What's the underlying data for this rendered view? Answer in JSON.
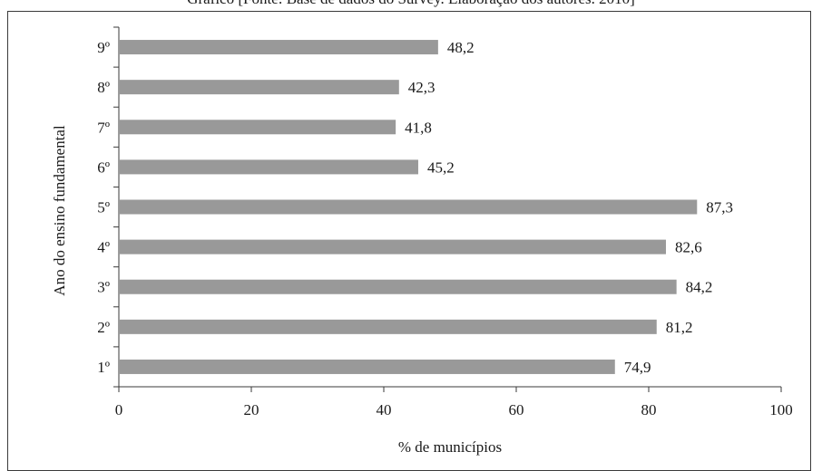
{
  "caption_fragment": "Gráfico [Fonte: Base de dados do Survey. Elaboração dos autores. 2010]",
  "chart_data": {
    "type": "bar",
    "orientation": "horizontal",
    "categories": [
      "1º",
      "2º",
      "3º",
      "4º",
      "5º",
      "6º",
      "7º",
      "8º",
      "9º"
    ],
    "values": [
      74.9,
      81.2,
      84.2,
      82.6,
      87.3,
      45.2,
      41.8,
      42.3,
      48.2
    ],
    "value_labels": [
      "74,9",
      "81,2",
      "84,2",
      "82,6",
      "87,3",
      "45,2",
      "41,8",
      "42,3",
      "48,2"
    ],
    "xlabel": "% de municípios",
    "ylabel": "Ano do ensino fundamental",
    "xlim": [
      0,
      100
    ],
    "xticks": [
      0,
      20,
      40,
      60,
      80,
      100
    ],
    "bar_color": "#999999",
    "grid": false,
    "legend": "none"
  }
}
